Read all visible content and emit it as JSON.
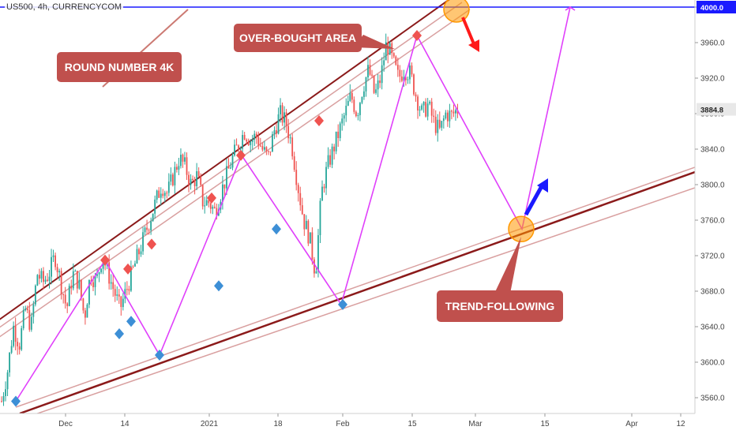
{
  "header": {
    "symbol_line": "US500, 4h, CURRENCYCOM"
  },
  "colors": {
    "up_candle": "#26a69a",
    "down_candle": "#ef5350",
    "channel_main": "#8b1a1a",
    "channel_band": "#d9a0a0",
    "zigzag": "#e040fb",
    "level_line": "#1a1aff",
    "annotation_bg": "#c0504d",
    "diamond_red": "#ef5350",
    "diamond_blue": "#3d8fd6",
    "arrow_red": "#ff1a1a",
    "arrow_blue": "#1a1aff",
    "circle_fill": "#ff9800"
  },
  "annotations": {
    "round_number": "ROUND NUMBER 4K",
    "over_bought": "OVER-BOUGHT AREA",
    "trend_following": "TREND-FOLLOWING"
  },
  "price_tags": {
    "level": "4000.0",
    "last": "3884.8"
  },
  "chart_data": {
    "type": "candlestick",
    "title": "US500, 4h, CURRENCYCOM",
    "y_axis": {
      "side": "right",
      "ylim": [
        3545,
        4005
      ],
      "ticks": [
        3560,
        3600,
        3640,
        3680,
        3720,
        3760,
        3800,
        3840,
        3880,
        3920,
        3960,
        4000
      ]
    },
    "x_axis": {
      "tick_labels": [
        "Dec",
        "14",
        "2021",
        "18",
        "Feb",
        "15",
        "Mar",
        "15",
        "Apr",
        "12"
      ]
    },
    "horizontal_level": 4000.0,
    "last_price": 3884.8,
    "price_path": [
      3556,
      3590,
      3640,
      3620,
      3660,
      3640,
      3700,
      3690,
      3700,
      3720,
      3690,
      3660,
      3700,
      3690,
      3650,
      3700,
      3690,
      3720,
      3700,
      3680,
      3660,
      3680,
      3700,
      3720,
      3740,
      3760,
      3780,
      3800,
      3790,
      3810,
      3830,
      3820,
      3800,
      3810,
      3780,
      3780,
      3770,
      3790,
      3810,
      3830,
      3845,
      3860,
      3850,
      3855,
      3840,
      3830,
      3860,
      3880,
      3870,
      3845,
      3800,
      3760,
      3740,
      3700,
      3790,
      3820,
      3840,
      3860,
      3880,
      3900,
      3880,
      3910,
      3930,
      3900,
      3920,
      3960,
      3940,
      3920,
      3930,
      3925,
      3900,
      3880,
      3890,
      3870,
      3860,
      3880,
      3878,
      3884.8
    ],
    "markers_red_diamond": [
      3715,
      3705,
      3733,
      3785,
      3833,
      3872,
      3968
    ],
    "markers_blue_diamond": [
      3556,
      3632,
      3646,
      3608,
      3686,
      3750,
      3665
    ],
    "zigzag_points": [
      3556,
      3715,
      3608,
      3833,
      3665,
      3968,
      3750,
      4000
    ]
  }
}
